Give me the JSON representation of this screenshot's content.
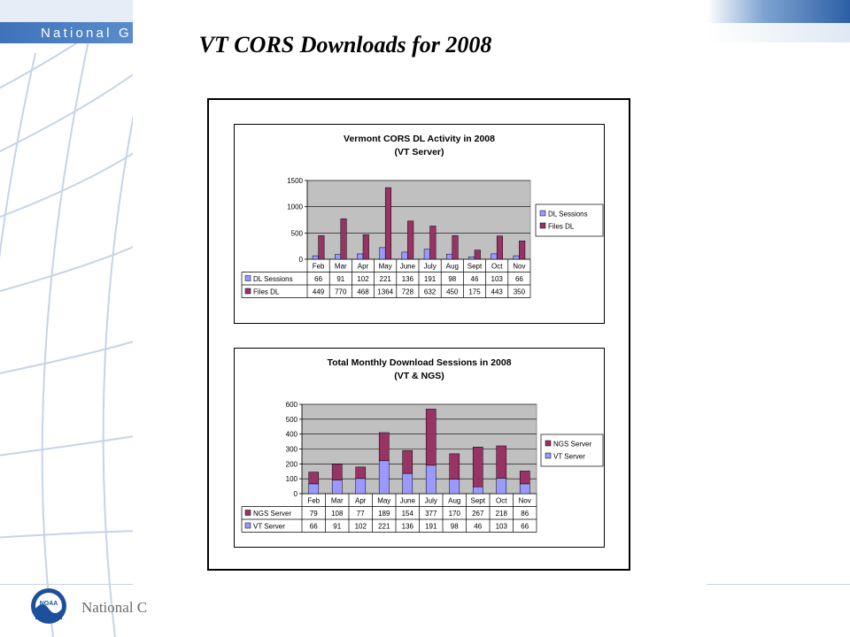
{
  "slide": {
    "title": "VT CORS Downloads for 2008",
    "header_fragment": "National G",
    "footer_fragment": "National C",
    "noaa_logo_text": "NOAA"
  },
  "chart_data": [
    {
      "type": "bar",
      "title": "Vermont CORS DL Activity in 2008",
      "subtitle": "(VT Server)",
      "categories": [
        "Feb",
        "Mar",
        "Apr",
        "May",
        "June",
        "July",
        "Aug",
        "Sept",
        "Oct",
        "Nov"
      ],
      "series": [
        {
          "name": "DL Sessions",
          "values": [
            66,
            91,
            102,
            221,
            136,
            191,
            98,
            46,
            103,
            66
          ],
          "color": "#9999ff"
        },
        {
          "name": "Files DL",
          "values": [
            449,
            770,
            468,
            1364,
            728,
            632,
            450,
            175,
            443,
            350
          ],
          "color": "#993366"
        }
      ],
      "ylim": [
        0,
        1500
      ],
      "yticks": [
        0,
        500,
        1000,
        1500
      ],
      "grid": true,
      "plot_background": "#c0c0c0",
      "legend_position": "right",
      "data_table": true
    },
    {
      "type": "bar",
      "stacked": true,
      "title": "Total Monthly Download Sessions in 2008",
      "subtitle": "(VT & NGS)",
      "categories": [
        "Feb",
        "Mar",
        "Apr",
        "May",
        "June",
        "July",
        "Aug",
        "Sept",
        "Oct",
        "Nov"
      ],
      "series": [
        {
          "name": "NGS Server",
          "values": [
            79,
            108,
            77,
            189,
            154,
            377,
            170,
            267,
            218,
            86
          ],
          "color": "#993366"
        },
        {
          "name": "VT Server",
          "values": [
            66,
            91,
            102,
            221,
            136,
            191,
            98,
            46,
            103,
            66
          ],
          "color": "#9999ff"
        }
      ],
      "ylim": [
        0,
        600
      ],
      "yticks": [
        0,
        100,
        200,
        300,
        400,
        500,
        600
      ],
      "grid": true,
      "plot_background": "#c0c0c0",
      "legend_position": "right",
      "data_table": true
    }
  ]
}
